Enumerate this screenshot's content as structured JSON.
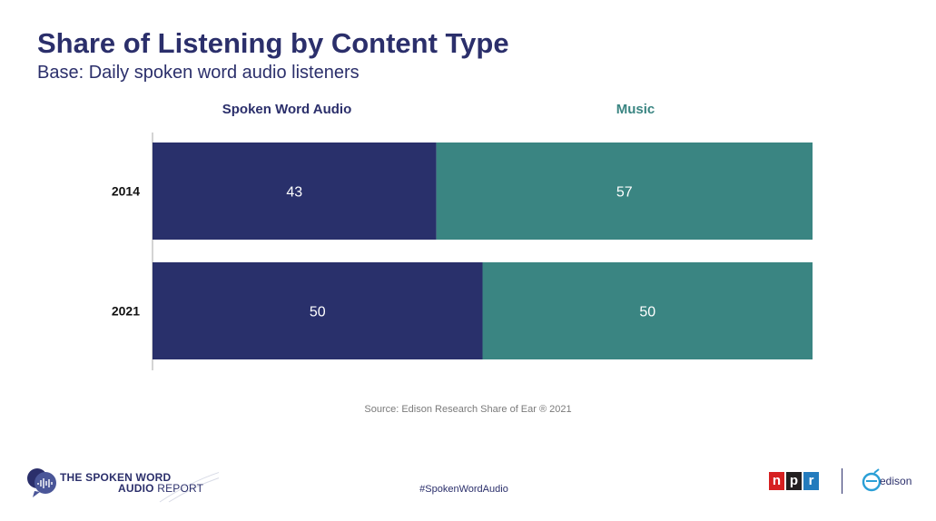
{
  "title": "Share of Listening by Content Type",
  "subtitle": "Base: Daily spoken word audio listeners",
  "colors": {
    "spoken": "#29306b",
    "music": "#3a8582",
    "title": "#2b2f6b",
    "axis": "#b8b8b8"
  },
  "chart_data": {
    "type": "bar",
    "orientation": "horizontal",
    "stacked": true,
    "categories": [
      "2014",
      "2021"
    ],
    "series": [
      {
        "name": "Spoken Word Audio",
        "values": [
          43,
          50
        ]
      },
      {
        "name": "Music",
        "values": [
          57,
          50
        ]
      }
    ],
    "xlim": [
      0,
      100
    ],
    "title": "Share of Listening by Content Type",
    "xlabel": "",
    "ylabel": "",
    "legend": "top",
    "grid": false
  },
  "source": "Source: Edison Research Share of Ear ® 2021",
  "footer": {
    "report_line1": "THE SPOKEN WORD",
    "report_line2_bold": "AUDIO",
    "report_line2_light": " REPORT",
    "hashtag": "#SpokenWordAudio",
    "npr_letters": [
      "n",
      "p",
      "r"
    ],
    "npr_colors": [
      "#d62021",
      "#231f20",
      "#237bbd"
    ],
    "edison": "edison"
  }
}
